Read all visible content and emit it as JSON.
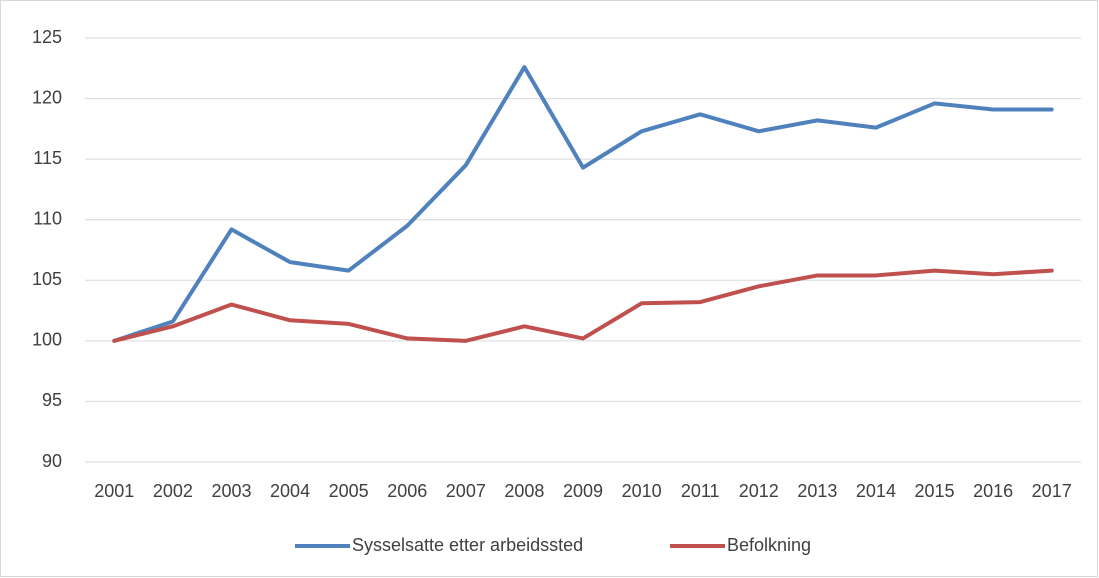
{
  "chart_data": {
    "type": "line",
    "categories": [
      "2001",
      "2002",
      "2003",
      "2004",
      "2005",
      "2006",
      "2007",
      "2008",
      "2009",
      "2010",
      "2011",
      "2012",
      "2013",
      "2014",
      "2015",
      "2016",
      "2017"
    ],
    "series": [
      {
        "name": "Sysselsatte etter arbeidssted",
        "color": "#4f81bd",
        "values": [
          100,
          101.6,
          109.2,
          106.5,
          105.8,
          109.5,
          114.5,
          122.6,
          114.3,
          117.3,
          118.7,
          117.3,
          118.2,
          117.6,
          119.6,
          119.1,
          119.1
        ]
      },
      {
        "name": "Befolkning",
        "color": "#c0504d",
        "values": [
          100,
          101.2,
          103.0,
          101.7,
          101.4,
          100.2,
          100,
          101.2,
          100.2,
          103.1,
          103.2,
          104.5,
          105.4,
          105.4,
          105.8,
          105.5,
          105.8
        ]
      }
    ],
    "ylim": [
      90,
      125
    ],
    "yticks": [
      90,
      95,
      100,
      105,
      110,
      115,
      120,
      125
    ],
    "grid": true,
    "legend": "bottom"
  }
}
